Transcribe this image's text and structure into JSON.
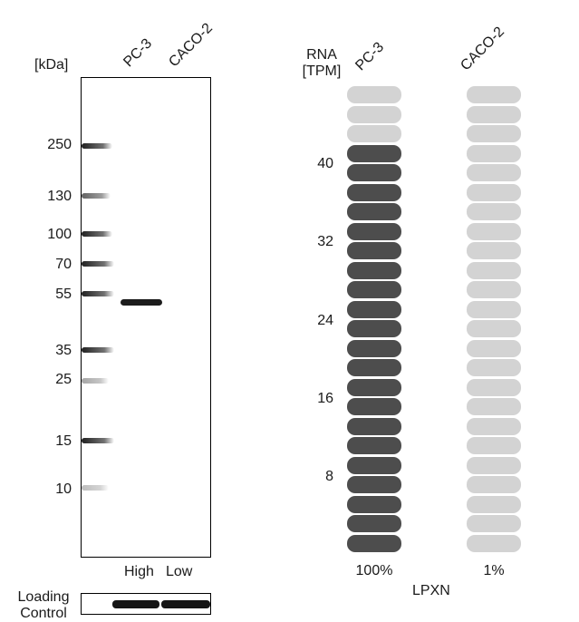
{
  "western_blot": {
    "kda_label": "[kDa]",
    "lanes": [
      "PC-3",
      "CACO-2"
    ],
    "markers": [
      "250",
      "130",
      "100",
      "70",
      "55",
      "35",
      "25",
      "15",
      "10"
    ],
    "lane_levels": [
      "High",
      "Low"
    ],
    "loading_control_label": [
      "Loading",
      "Control"
    ]
  },
  "rna": {
    "axis_label": [
      "RNA",
      "[TPM]"
    ],
    "cell_lines": [
      "PC-3",
      "CACO-2"
    ],
    "ticks": [
      "40",
      "32",
      "24",
      "16",
      "8"
    ],
    "percentages": [
      "100%",
      "1%"
    ],
    "gene": "LPXN",
    "colors": {
      "high": "#4d4d4d",
      "low": "#d3d3d3"
    }
  },
  "chart_data": {
    "type": "bar",
    "categories": [
      "PC-3",
      "CACO-2"
    ],
    "values": [
      100,
      1
    ],
    "ylabel": "RNA [TPM]",
    "yticks": [
      8,
      16,
      24,
      32,
      40
    ],
    "value_labels": [
      "100%",
      "1%"
    ],
    "xlabel": "LPXN"
  }
}
